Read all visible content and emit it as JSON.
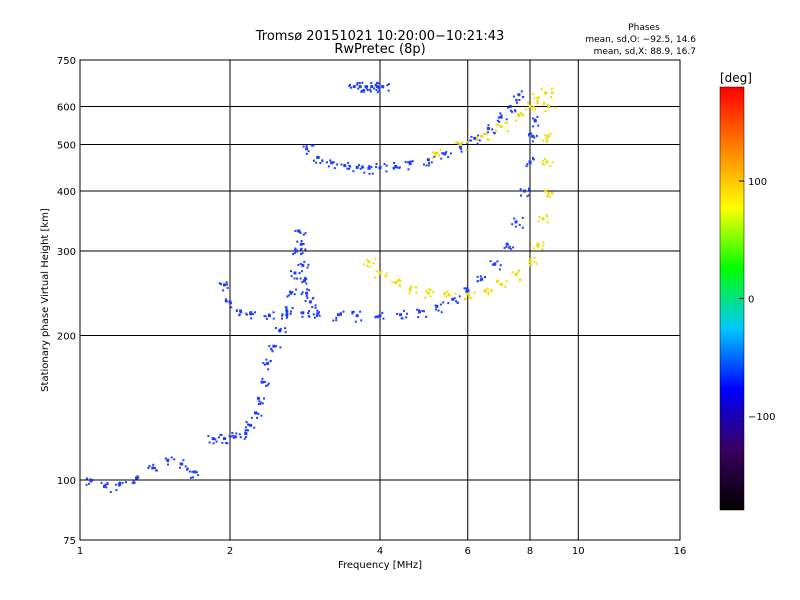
{
  "chart_data": {
    "type": "scatter",
    "title": "Tromsø 20151021 10:20:00−10:21:43",
    "subtitle": "RwPretec (8p)",
    "xlabel": "Frequency [MHz]",
    "ylabel": "Stationary phase Virtual Height [km]",
    "x_scale": "log",
    "y_scale": "log",
    "xlim": [
      1,
      16
    ],
    "ylim": [
      75,
      750
    ],
    "x_ticks": [
      1,
      2,
      4,
      6,
      8,
      10,
      16
    ],
    "y_ticks": [
      75,
      100,
      200,
      300,
      400,
      500,
      600,
      750
    ],
    "grid": true,
    "phases_box": {
      "heading": "Phases",
      "line1": "mean, sd,O: −92.5, 14.6",
      "line2": "mean, sd,X:  88.9, 16.7"
    },
    "colorbar": {
      "label": "[deg]",
      "range": [
        -180,
        180
      ],
      "ticks": [
        100,
        0,
        -100
      ],
      "colormap": [
        "#000000",
        "#3a0060",
        "#0000ff",
        "#00c8ff",
        "#00ff00",
        "#ffff00",
        "#ff8000",
        "#ff0000"
      ]
    },
    "series": [
      {
        "mode": "O",
        "color": "#1e3cff",
        "traces": [
          {
            "x": [
              1.05,
              1.12,
              1.2,
              1.3,
              1.4,
              1.5,
              1.6,
              1.7
            ],
            "y": [
              100,
              97,
              98,
              101,
              106,
              110,
              108,
              104
            ]
          },
          {
            "x": [
              1.85,
              1.95,
              2.05,
              2.15,
              2.2,
              2.25,
              2.28,
              2.32,
              2.38,
              2.45,
              2.52,
              2.6,
              2.65,
              2.7,
              2.72,
              2.75,
              2.78,
              2.8,
              2.82,
              2.85,
              2.9
            ],
            "y": [
              122,
              122,
              123,
              125,
              130,
              138,
              148,
              160,
              175,
              190,
              205,
              225,
              245,
              270,
              300,
              330,
              310,
              280,
              260,
              245,
              235
            ]
          },
          {
            "x": [
              1.95,
              2.0,
              2.1,
              2.2,
              2.4,
              2.6,
              2.8,
              3.0,
              3.3,
              3.6,
              4.0,
              4.4,
              4.8,
              5.2,
              5.6,
              6.0,
              6.4,
              6.8,
              7.2,
              7.5,
              7.8,
              8.0,
              8.1,
              8.2
            ],
            "y": [
              255,
              235,
              225,
              222,
              220,
              221,
              223,
              222,
              221,
              220,
              220,
              221,
              224,
              230,
              238,
              248,
              262,
              282,
              310,
              345,
              400,
              460,
              520,
              560
            ]
          },
          {
            "x": [
              2.85,
              3.0,
              3.2,
              3.4,
              3.6,
              3.8,
              4.0,
              4.3,
              4.6,
              5.0,
              5.4,
              5.8,
              6.2,
              6.6,
              7.0,
              7.3,
              7.6
            ],
            "y": [
              490,
              470,
              458,
              452,
              448,
              446,
              447,
              450,
              456,
              465,
              478,
              495,
              515,
              540,
              570,
              600,
              635
            ]
          },
          {
            "x": [
              3.55,
              3.65,
              3.75,
              3.85,
              3.95,
              4.05
            ],
            "y": [
              660,
              660,
              660,
              660,
              660,
              660
            ]
          }
        ]
      },
      {
        "mode": "X",
        "color": "#f0dc00",
        "traces": [
          {
            "x": [
              3.8,
              4.0,
              4.3,
              4.6,
              5.0,
              5.5,
              6.0,
              6.5,
              7.0,
              7.5,
              8.0,
              8.3,
              8.5,
              8.6,
              8.65,
              8.7,
              8.72
            ],
            "y": [
              285,
              270,
              258,
              250,
              245,
              243,
              244,
              248,
              256,
              268,
              285,
              310,
              350,
              400,
              460,
              520,
              600
            ]
          },
          {
            "x": [
              5.2,
              5.8,
              6.4,
              7.0,
              7.6,
              8.0,
              8.3,
              8.6
            ],
            "y": [
              480,
              500,
              520,
              545,
              575,
              600,
              625,
              640
            ]
          }
        ]
      }
    ]
  }
}
